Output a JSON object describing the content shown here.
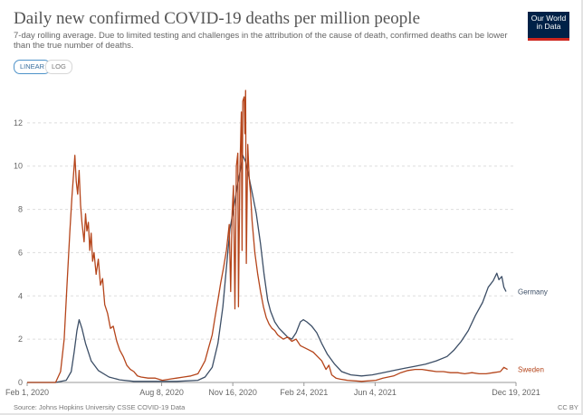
{
  "header": {
    "title": "Daily new confirmed COVID-19 deaths per million people",
    "subtitle": "7-day rolling average. Due to limited testing and challenges in the attribution of the cause of death, confirmed deaths can be lower than the true number of deaths."
  },
  "logo": {
    "line1": "Our World",
    "line2": "in Data"
  },
  "controls": {
    "linear_label": "LINEAR",
    "log_label": "LOG"
  },
  "footer": {
    "source": "Source: Johns Hopkins University CSSE COVID-19 Data",
    "license": "CC BY"
  },
  "colors": {
    "germany": "#3c4e66",
    "sweden": "#b5451b",
    "grid": "#dddddd"
  },
  "chart_data": {
    "type": "line",
    "title": "Daily new confirmed COVID-19 deaths per million people",
    "xlabel": "",
    "ylabel": "",
    "x_range": [
      0,
      687
    ],
    "ylim": [
      0,
      14
    ],
    "yticks": [
      0,
      2,
      4,
      6,
      8,
      10,
      12
    ],
    "xticks": [
      {
        "day": 0,
        "label": "Feb 1, 2020"
      },
      {
        "day": 189,
        "label": "Aug 8, 2020"
      },
      {
        "day": 289,
        "label": "Nov 16, 2020"
      },
      {
        "day": 389,
        "label": "Feb 24, 2021"
      },
      {
        "day": 489,
        "label": "Jun 4, 2021"
      },
      {
        "day": 687,
        "label": "Dec 19, 2021"
      }
    ],
    "series": [
      {
        "name": "Germany",
        "points": [
          [
            0,
            0
          ],
          [
            40,
            0
          ],
          [
            55,
            0.1
          ],
          [
            62,
            0.5
          ],
          [
            66,
            1.4
          ],
          [
            70,
            2.4
          ],
          [
            73,
            2.9
          ],
          [
            77,
            2.5
          ],
          [
            82,
            1.8
          ],
          [
            90,
            1.0
          ],
          [
            100,
            0.55
          ],
          [
            115,
            0.25
          ],
          [
            130,
            0.12
          ],
          [
            150,
            0.05
          ],
          [
            180,
            0.05
          ],
          [
            210,
            0.05
          ],
          [
            240,
            0.1
          ],
          [
            250,
            0.25
          ],
          [
            260,
            0.7
          ],
          [
            268,
            1.8
          ],
          [
            275,
            3.5
          ],
          [
            280,
            5.3
          ],
          [
            285,
            7.1
          ],
          [
            290,
            8.0
          ],
          [
            295,
            9.0
          ],
          [
            300,
            9.9
          ],
          [
            303,
            10.5
          ],
          [
            307,
            10.2
          ],
          [
            311,
            9.6
          ],
          [
            316,
            8.8
          ],
          [
            322,
            7.8
          ],
          [
            328,
            6.4
          ],
          [
            333,
            5.0
          ],
          [
            338,
            3.8
          ],
          [
            342,
            3.3
          ],
          [
            348,
            2.8
          ],
          [
            354,
            2.5
          ],
          [
            360,
            2.3
          ],
          [
            366,
            2.1
          ],
          [
            372,
            2.0
          ],
          [
            378,
            2.3
          ],
          [
            384,
            2.8
          ],
          [
            388,
            2.9
          ],
          [
            393,
            2.8
          ],
          [
            400,
            2.6
          ],
          [
            407,
            2.3
          ],
          [
            414,
            1.8
          ],
          [
            422,
            1.3
          ],
          [
            432,
            0.85
          ],
          [
            442,
            0.5
          ],
          [
            455,
            0.35
          ],
          [
            470,
            0.3
          ],
          [
            485,
            0.35
          ],
          [
            500,
            0.45
          ],
          [
            515,
            0.55
          ],
          [
            530,
            0.65
          ],
          [
            545,
            0.75
          ],
          [
            560,
            0.85
          ],
          [
            575,
            1.0
          ],
          [
            590,
            1.2
          ],
          [
            600,
            1.5
          ],
          [
            610,
            1.9
          ],
          [
            620,
            2.4
          ],
          [
            630,
            3.1
          ],
          [
            640,
            3.7
          ],
          [
            648,
            4.4
          ],
          [
            655,
            4.7
          ],
          [
            660,
            5.05
          ],
          [
            663,
            4.75
          ],
          [
            667,
            4.9
          ],
          [
            670,
            4.4
          ],
          [
            673,
            4.2
          ]
        ]
      },
      {
        "name": "Sweden",
        "points": [
          [
            0,
            0
          ],
          [
            40,
            0
          ],
          [
            47,
            0.5
          ],
          [
            52,
            2.0
          ],
          [
            56,
            4.5
          ],
          [
            60,
            7.0
          ],
          [
            63,
            8.6
          ],
          [
            66,
            10.0
          ],
          [
            67,
            10.5
          ],
          [
            69,
            9.3
          ],
          [
            71,
            8.7
          ],
          [
            73,
            9.8
          ],
          [
            75,
            8.2
          ],
          [
            77,
            7.4
          ],
          [
            80,
            6.5
          ],
          [
            82,
            7.8
          ],
          [
            84,
            7.0
          ],
          [
            86,
            7.4
          ],
          [
            88,
            6.1
          ],
          [
            90,
            6.9
          ],
          [
            92,
            5.6
          ],
          [
            94,
            6.0
          ],
          [
            97,
            5.0
          ],
          [
            100,
            5.7
          ],
          [
            103,
            4.5
          ],
          [
            106,
            4.8
          ],
          [
            109,
            3.6
          ],
          [
            113,
            3.2
          ],
          [
            117,
            2.5
          ],
          [
            121,
            2.6
          ],
          [
            126,
            1.9
          ],
          [
            130,
            1.5
          ],
          [
            135,
            1.2
          ],
          [
            140,
            0.8
          ],
          [
            145,
            0.6
          ],
          [
            150,
            0.5
          ],
          [
            155,
            0.3
          ],
          [
            160,
            0.25
          ],
          [
            170,
            0.2
          ],
          [
            180,
            0.2
          ],
          [
            190,
            0.1
          ],
          [
            200,
            0.15
          ],
          [
            210,
            0.2
          ],
          [
            220,
            0.25
          ],
          [
            230,
            0.3
          ],
          [
            240,
            0.4
          ],
          [
            245,
            0.7
          ],
          [
            250,
            1.0
          ],
          [
            255,
            1.6
          ],
          [
            260,
            2.2
          ],
          [
            264,
            3.0
          ],
          [
            268,
            3.8
          ],
          [
            272,
            4.6
          ],
          [
            276,
            5.3
          ],
          [
            280,
            6.1
          ],
          [
            284,
            7.3
          ],
          [
            286,
            4.2
          ],
          [
            288,
            7.8
          ],
          [
            290,
            9.1
          ],
          [
            292,
            3.4
          ],
          [
            294,
            10.0
          ],
          [
            296,
            10.6
          ],
          [
            297,
            3.5
          ],
          [
            299,
            9.8
          ],
          [
            301,
            12.5
          ],
          [
            302,
            6.1
          ],
          [
            303,
            13.0
          ],
          [
            305,
            13.2
          ],
          [
            306,
            11.5
          ],
          [
            307,
            13.5
          ],
          [
            308,
            5.5
          ],
          [
            310,
            11.0
          ],
          [
            312,
            9.5
          ],
          [
            314,
            8.7
          ],
          [
            316,
            7.5
          ],
          [
            320,
            6.0
          ],
          [
            324,
            5.0
          ],
          [
            328,
            4.2
          ],
          [
            332,
            3.5
          ],
          [
            336,
            3.0
          ],
          [
            340,
            2.7
          ],
          [
            344,
            2.5
          ],
          [
            348,
            2.4
          ],
          [
            352,
            2.2
          ],
          [
            356,
            2.1
          ],
          [
            360,
            2.0
          ],
          [
            366,
            2.1
          ],
          [
            372,
            1.9
          ],
          [
            378,
            2.0
          ],
          [
            384,
            1.7
          ],
          [
            390,
            1.6
          ],
          [
            396,
            1.5
          ],
          [
            402,
            1.4
          ],
          [
            408,
            1.2
          ],
          [
            414,
            1.0
          ],
          [
            420,
            0.6
          ],
          [
            424,
            0.8
          ],
          [
            428,
            0.35
          ],
          [
            434,
            0.2
          ],
          [
            440,
            0.15
          ],
          [
            450,
            0.1
          ],
          [
            470,
            0.05
          ],
          [
            490,
            0.1
          ],
          [
            500,
            0.2
          ],
          [
            515,
            0.3
          ],
          [
            525,
            0.45
          ],
          [
            535,
            0.55
          ],
          [
            545,
            0.6
          ],
          [
            555,
            0.6
          ],
          [
            565,
            0.55
          ],
          [
            575,
            0.5
          ],
          [
            585,
            0.5
          ],
          [
            595,
            0.45
          ],
          [
            605,
            0.45
          ],
          [
            615,
            0.4
          ],
          [
            625,
            0.45
          ],
          [
            635,
            0.4
          ],
          [
            645,
            0.4
          ],
          [
            655,
            0.45
          ],
          [
            665,
            0.5
          ],
          [
            670,
            0.7
          ],
          [
            675,
            0.6
          ]
        ]
      }
    ]
  }
}
